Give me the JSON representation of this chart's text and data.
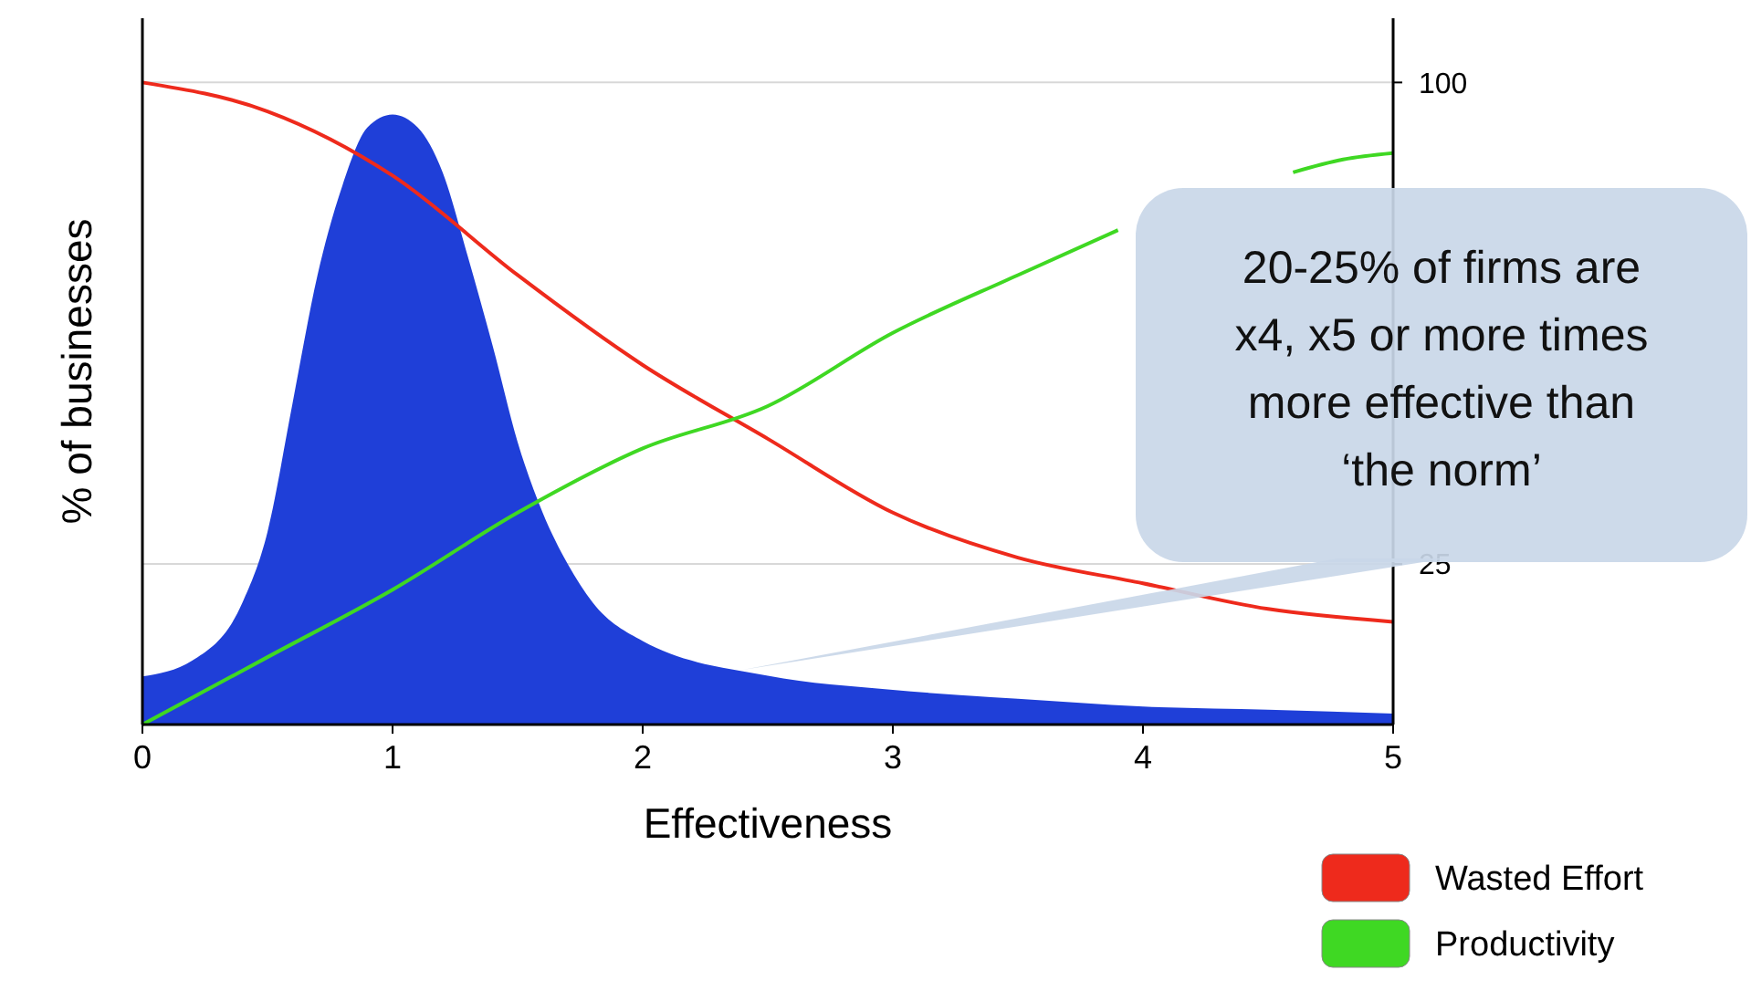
{
  "chart_data": {
    "type": "area",
    "xlabel": "Effectiveness",
    "ylabel": "% of businesses",
    "xlim": [
      0,
      5
    ],
    "xticks": [
      0,
      1,
      2,
      3,
      4,
      5
    ],
    "ylim": [
      0,
      110
    ],
    "yticks": [
      25,
      100
    ],
    "grid": "y",
    "legend": "bottom right",
    "series": [
      {
        "color": "#1f3fd8",
        "x": [
          0,
          0.2,
          0.4,
          0.5,
          0.6,
          0.7,
          0.8,
          0.9,
          1,
          1.1,
          1.2,
          1.3,
          1.4,
          1.5,
          1.6,
          1.7,
          1.8,
          2,
          2.5,
          3,
          3.5,
          4,
          4.5,
          5
        ],
        "values": [
          7.5,
          10,
          19,
          30,
          50,
          70,
          84,
          93,
          95,
          93,
          86,
          73,
          59,
          44,
          33,
          25,
          19,
          13,
          7.6,
          5.4,
          4,
          2.8,
          2.3,
          1.7
        ]
      },
      {
        "type": "line",
        "name": "Wasted Effort",
        "color": "#ee2a1c",
        "x": [
          0,
          0.5,
          1,
          1.5,
          2,
          2.5,
          3,
          3.5,
          4,
          4.5,
          5
        ],
        "values": [
          100,
          95.5,
          85.5,
          70,
          56,
          44.5,
          33,
          26,
          22,
          18,
          16
        ]
      },
      {
        "type": "line",
        "name": "Productivity",
        "color": "#3fd823",
        "x": [
          0,
          0.5,
          1,
          1.5,
          2,
          2.5,
          3,
          3.5,
          3.9,
          4.2,
          4.6,
          4.8,
          5
        ],
        "values": [
          0,
          10.5,
          21,
          33,
          43,
          49.6,
          61,
          70,
          77,
          null,
          86,
          88,
          89
        ]
      }
    ],
    "annotations": [
      "20-25% of firms are\nx4, x5 or more times\nmore effective than\n‘the norm’"
    ]
  }
}
